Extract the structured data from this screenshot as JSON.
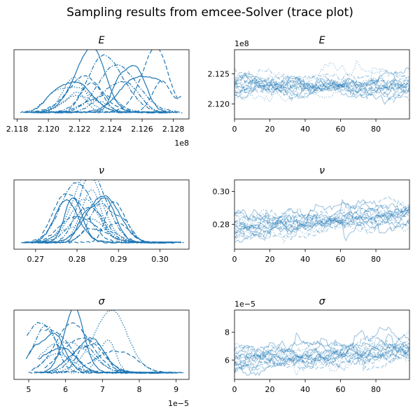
{
  "title": "Sampling results from emcee-Solver (trace plot)",
  "colors": {
    "line": "#1f77b4"
  },
  "chart_data": [
    {
      "id": "E-density",
      "type": "line",
      "subplot_title": "E",
      "x_tick_labels": [
        "2.118",
        "2.120",
        "2.122",
        "2.124",
        "2.126",
        "2.128"
      ],
      "x_offset_label": "1e8",
      "xlim": [
        2.1178,
        2.129
      ],
      "yticks": "none",
      "series_description": "per-walker KDE curves (solid, dashed, dotted, dash-dot)",
      "peak_x": [
        2.1226,
        2.1231,
        2.1222,
        2.1238,
        2.1245,
        2.1262,
        2.1218,
        2.1235
      ],
      "x_range_min": 2.1182,
      "x_range_max": 2.1286
    },
    {
      "id": "E-trace",
      "type": "line",
      "subplot_title": "E",
      "x_tick_labels": [
        "0",
        "20",
        "40",
        "60",
        "80"
      ],
      "y_tick_labels": [
        "2.120",
        "2.125"
      ],
      "y_offset_label": "1e8",
      "xlim": [
        0,
        99
      ],
      "ylim": [
        2.1175,
        2.129
      ],
      "start_value": 2.1228,
      "end_value": 2.1234,
      "band": [
        2.119,
        2.128
      ]
    },
    {
      "id": "nu-density",
      "type": "line",
      "subplot_title": "ν",
      "x_tick_labels": [
        "0.27",
        "0.28",
        "0.29",
        "0.30"
      ],
      "xlim": [
        0.2648,
        0.307
      ],
      "yticks": "none",
      "peak_x": [
        0.2795,
        0.28,
        0.283,
        0.285,
        0.287,
        0.29,
        0.281,
        0.284
      ],
      "x_range_min": 0.2665,
      "x_range_max": 0.306
    },
    {
      "id": "nu-trace",
      "type": "line",
      "subplot_title": "ν",
      "x_tick_labels": [
        "0",
        "20",
        "40",
        "60",
        "80"
      ],
      "y_tick_labels": [
        "0.28",
        "0.30"
      ],
      "xlim": [
        0,
        99
      ],
      "ylim": [
        0.2648,
        0.307
      ],
      "start_value": 0.2795,
      "end_value": 0.2875,
      "band": [
        0.269,
        0.304
      ]
    },
    {
      "id": "sigma-density",
      "type": "line",
      "subplot_title": "σ",
      "x_tick_labels": [
        "5",
        "6",
        "7",
        "8",
        "9"
      ],
      "x_offset_label": "1e−5",
      "xlim": [
        4.6,
        9.35
      ],
      "yticks": "none",
      "peak_x": [
        5.75,
        6.0,
        6.2,
        6.6,
        6.7,
        6.95,
        7.3,
        5.4
      ],
      "x_range_min": 4.85,
      "x_range_max": 9.2
    },
    {
      "id": "sigma-trace",
      "type": "line",
      "subplot_title": "σ",
      "x_tick_labels": [
        "0",
        "20",
        "40",
        "60",
        "80"
      ],
      "y_tick_labels": [
        "6",
        "8"
      ],
      "y_offset_label": "1e−5",
      "xlim": [
        0,
        99
      ],
      "ylim": [
        4.6,
        9.6
      ],
      "start_value": 6.2,
      "end_value": 6.8,
      "band": [
        4.9,
        9.3
      ]
    }
  ]
}
